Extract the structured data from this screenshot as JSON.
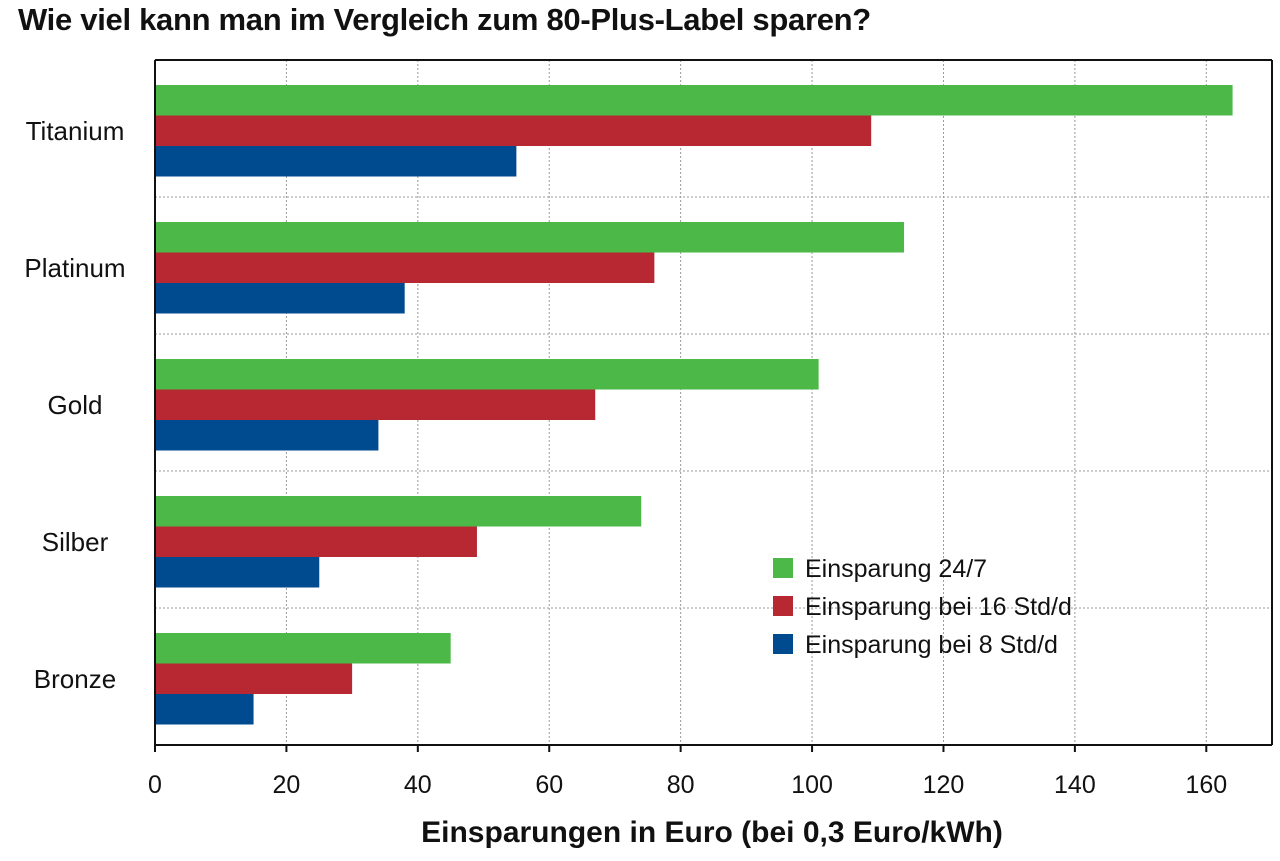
{
  "chart_data": {
    "type": "bar",
    "orientation": "horizontal",
    "title": "Wie viel kann man im Vergleich zum 80-Plus-Label sparen?",
    "xlabel": "Einsparungen in Euro (bei 0,3 Euro/kWh)",
    "ylabel": "",
    "categories": [
      "Titanium",
      "Platinum",
      "Gold",
      "Silber",
      "Bronze"
    ],
    "series": [
      {
        "name": "Einsparung 24/7",
        "color": "#4cb848",
        "values": [
          164,
          114,
          101,
          74,
          45
        ]
      },
      {
        "name": "Einsparung bei 16 Std/d",
        "color": "#b72833",
        "values": [
          109,
          76,
          67,
          49,
          30
        ]
      },
      {
        "name": "Einsparung bei 8 Std/d",
        "color": "#004a8f",
        "values": [
          55,
          38,
          34,
          25,
          15
        ]
      }
    ],
    "xlim": [
      0,
      170
    ],
    "xticks": [
      0,
      20,
      40,
      60,
      80,
      100,
      120,
      140,
      160
    ],
    "grid": true,
    "legend_position": "bottom-right"
  }
}
